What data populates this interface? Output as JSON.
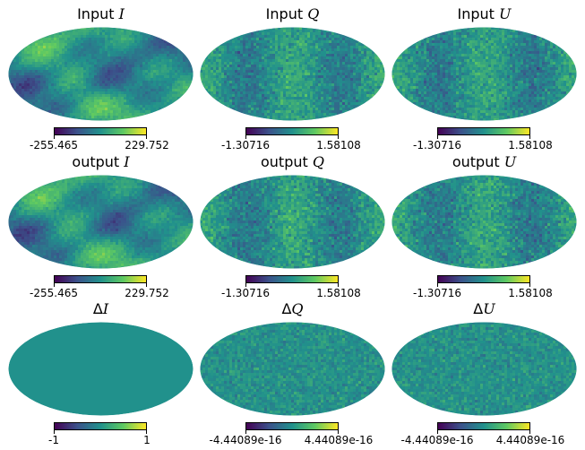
{
  "chart_data": [
    {
      "type": "heatmap",
      "projection": "mollweide",
      "colormap": "viridis",
      "texture": "cmb_large",
      "title_prefix": "Input ",
      "title_symbol": "I",
      "colorbar_min": "-255.465",
      "colorbar_max": "229.752"
    },
    {
      "type": "heatmap",
      "projection": "mollweide",
      "colormap": "viridis",
      "texture": "noise_bands",
      "title_prefix": "Input ",
      "title_symbol": "Q",
      "colorbar_min": "-1.30716",
      "colorbar_max": "1.58108"
    },
    {
      "type": "heatmap",
      "projection": "mollweide",
      "colormap": "viridis",
      "texture": "noise_bands",
      "title_prefix": "Input ",
      "title_symbol": "U",
      "colorbar_min": "-1.30716",
      "colorbar_max": "1.58108"
    },
    {
      "type": "heatmap",
      "projection": "mollweide",
      "colormap": "viridis",
      "texture": "cmb_large",
      "title_prefix": "output ",
      "title_symbol": "I",
      "colorbar_min": "-255.465",
      "colorbar_max": "229.752"
    },
    {
      "type": "heatmap",
      "projection": "mollweide",
      "colormap": "viridis",
      "texture": "noise_bands",
      "title_prefix": "output ",
      "title_symbol": "Q",
      "colorbar_min": "-1.30716",
      "colorbar_max": "1.58108"
    },
    {
      "type": "heatmap",
      "projection": "mollweide",
      "colormap": "viridis",
      "texture": "noise_bands",
      "title_prefix": "output ",
      "title_symbol": "U",
      "colorbar_min": "-1.30716",
      "colorbar_max": "1.58108"
    },
    {
      "type": "heatmap",
      "projection": "mollweide",
      "colormap": "viridis",
      "texture": "uniform",
      "title_prefix": "Δ",
      "title_symbol": "I",
      "colorbar_min": "-1",
      "colorbar_max": "1"
    },
    {
      "type": "heatmap",
      "projection": "mollweide",
      "colormap": "viridis",
      "texture": "fine_noise",
      "title_prefix": "Δ",
      "title_symbol": "Q",
      "colorbar_min": "-4.44089e-16",
      "colorbar_max": "4.44089e-16"
    },
    {
      "type": "heatmap",
      "projection": "mollweide",
      "colormap": "viridis",
      "texture": "fine_noise",
      "title_prefix": "Δ",
      "title_symbol": "U",
      "colorbar_min": "-4.44089e-16",
      "colorbar_max": "4.44089e-16"
    }
  ]
}
